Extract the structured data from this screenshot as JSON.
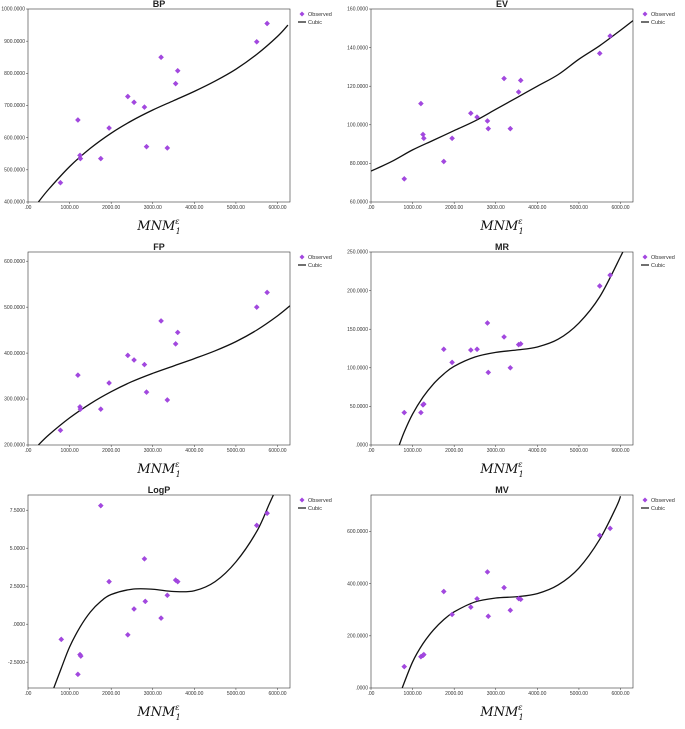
{
  "xlabel": {
    "base": "MNM",
    "sup": "ε",
    "sub": "1"
  },
  "legend": {
    "observed": "Observed",
    "fit": "Cubic"
  },
  "colors": {
    "observed": "#a347e0",
    "fit": "#111111"
  },
  "chart_data": [
    {
      "type": "scatter",
      "title": "BP",
      "xlim": [
        0,
        6300
      ],
      "ylim": [
        400,
        1000
      ],
      "xticks": [
        0,
        1000,
        2000,
        3000,
        4000,
        5000,
        6000
      ],
      "xtick_labels": [
        ".00",
        "1000.00",
        "2000.00",
        "3000.00",
        "4000.00",
        "5000.00",
        "6000.00"
      ],
      "yticks": [
        400,
        500,
        600,
        700,
        800,
        900,
        1000
      ],
      "ytick_labels": [
        "400.0000",
        "500.0000",
        "600.0000",
        "700.0000",
        "800.0000",
        "900.0000",
        "1000.0000"
      ],
      "observed": [
        [
          780,
          460
        ],
        [
          1200,
          655
        ],
        [
          1250,
          545
        ],
        [
          1260,
          535
        ],
        [
          1750,
          535
        ],
        [
          1950,
          630
        ],
        [
          2400,
          728
        ],
        [
          2550,
          710
        ],
        [
          2800,
          695
        ],
        [
          2850,
          572
        ],
        [
          3200,
          850
        ],
        [
          3350,
          568
        ],
        [
          3550,
          768
        ],
        [
          3600,
          808
        ],
        [
          5500,
          898
        ],
        [
          5750,
          955
        ]
      ],
      "fit_curve": [
        [
          250,
          400
        ],
        [
          500,
          440
        ],
        [
          1000,
          510
        ],
        [
          1500,
          567
        ],
        [
          2000,
          614
        ],
        [
          2500,
          653
        ],
        [
          3000,
          686
        ],
        [
          3500,
          715
        ],
        [
          4000,
          744
        ],
        [
          4500,
          776
        ],
        [
          5000,
          813
        ],
        [
          5500,
          859
        ],
        [
          6000,
          915
        ],
        [
          6250,
          950
        ]
      ]
    },
    {
      "type": "scatter",
      "title": "EV",
      "xlim": [
        0,
        6300
      ],
      "ylim": [
        60,
        160
      ],
      "xticks": [
        0,
        1000,
        2000,
        3000,
        4000,
        5000,
        6000
      ],
      "xtick_labels": [
        ".00",
        "1000.00",
        "2000.00",
        "3000.00",
        "4000.00",
        "5000.00",
        "6000.00"
      ],
      "yticks": [
        60,
        80,
        100,
        120,
        140,
        160
      ],
      "ytick_labels": [
        "60.0000",
        "80.0000",
        "100.0000",
        "120.0000",
        "140.0000",
        "160.0000"
      ],
      "observed": [
        [
          800,
          72
        ],
        [
          1200,
          111
        ],
        [
          1250,
          95
        ],
        [
          1270,
          93
        ],
        [
          1750,
          81
        ],
        [
          1950,
          93
        ],
        [
          2400,
          106
        ],
        [
          2550,
          104
        ],
        [
          2800,
          102
        ],
        [
          2820,
          98
        ],
        [
          3200,
          124
        ],
        [
          3350,
          98
        ],
        [
          3550,
          117
        ],
        [
          3600,
          123
        ],
        [
          5500,
          137
        ],
        [
          5750,
          146
        ]
      ],
      "fit_curve": [
        [
          0,
          76
        ],
        [
          500,
          81
        ],
        [
          1000,
          87
        ],
        [
          1500,
          92
        ],
        [
          2000,
          97
        ],
        [
          2500,
          102
        ],
        [
          3000,
          108
        ],
        [
          3500,
          114
        ],
        [
          4000,
          120
        ],
        [
          4500,
          126
        ],
        [
          5000,
          134
        ],
        [
          5500,
          141
        ],
        [
          6000,
          149
        ],
        [
          6300,
          154
        ]
      ]
    },
    {
      "type": "scatter",
      "title": "FP",
      "xlim": [
        0,
        6300
      ],
      "ylim": [
        200,
        620
      ],
      "xticks": [
        0,
        1000,
        2000,
        3000,
        4000,
        5000,
        6000
      ],
      "xtick_labels": [
        ".00",
        "1000.00",
        "2000.00",
        "3000.00",
        "4000.00",
        "5000.00",
        "6000.00"
      ],
      "yticks": [
        200,
        300,
        400,
        500,
        600
      ],
      "ytick_labels": [
        "200.0000",
        "300.0000",
        "400.0000",
        "500.0000",
        "600.0000"
      ],
      "observed": [
        [
          780,
          232
        ],
        [
          1200,
          352
        ],
        [
          1250,
          283
        ],
        [
          1260,
          278
        ],
        [
          1750,
          278
        ],
        [
          1950,
          335
        ],
        [
          2400,
          395
        ],
        [
          2550,
          385
        ],
        [
          2800,
          375
        ],
        [
          2850,
          315
        ],
        [
          3200,
          470
        ],
        [
          3350,
          298
        ],
        [
          3550,
          420
        ],
        [
          3600,
          445
        ],
        [
          5500,
          500
        ],
        [
          5750,
          532
        ]
      ],
      "fit_curve": [
        [
          250,
          200
        ],
        [
          500,
          222
        ],
        [
          1000,
          259
        ],
        [
          1500,
          290
        ],
        [
          2000,
          316
        ],
        [
          2500,
          338
        ],
        [
          3000,
          356
        ],
        [
          3500,
          372
        ],
        [
          4000,
          388
        ],
        [
          4500,
          405
        ],
        [
          5000,
          425
        ],
        [
          5500,
          450
        ],
        [
          6000,
          481
        ],
        [
          6300,
          503
        ]
      ]
    },
    {
      "type": "scatter",
      "title": "MR",
      "xlim": [
        0,
        6300
      ],
      "ylim": [
        0,
        250
      ],
      "xticks": [
        0,
        1000,
        2000,
        3000,
        4000,
        5000,
        6000
      ],
      "xtick_labels": [
        ".00",
        "1000.00",
        "2000.00",
        "3000.00",
        "4000.00",
        "5000.00",
        "6000.00"
      ],
      "yticks": [
        0,
        50,
        100,
        150,
        200,
        250
      ],
      "ytick_labels": [
        ".0000",
        "50.0000",
        "100.0000",
        "150.0000",
        "200.0000",
        "250.0000"
      ],
      "observed": [
        [
          800,
          42
        ],
        [
          1200,
          42
        ],
        [
          1250,
          52
        ],
        [
          1270,
          53
        ],
        [
          1750,
          124
        ],
        [
          1950,
          107
        ],
        [
          2400,
          123
        ],
        [
          2550,
          124
        ],
        [
          2800,
          158
        ],
        [
          2820,
          94
        ],
        [
          3200,
          140
        ],
        [
          3350,
          100
        ],
        [
          3550,
          130
        ],
        [
          3600,
          131
        ],
        [
          5500,
          206
        ],
        [
          5750,
          220
        ]
      ],
      "fit_curve": [
        [
          680,
          0
        ],
        [
          800,
          17
        ],
        [
          1000,
          40
        ],
        [
          1250,
          62
        ],
        [
          1500,
          79
        ],
        [
          1750,
          92
        ],
        [
          2000,
          102
        ],
        [
          2500,
          114
        ],
        [
          3000,
          120
        ],
        [
          3500,
          123
        ],
        [
          4000,
          127
        ],
        [
          4500,
          137
        ],
        [
          5000,
          158
        ],
        [
          5500,
          192
        ],
        [
          6000,
          244
        ],
        [
          6100,
          256
        ]
      ]
    },
    {
      "type": "scatter",
      "title": "LogP",
      "xlim": [
        0,
        6300
      ],
      "ylim": [
        -4.2,
        8.5
      ],
      "xticks": [
        0,
        1000,
        2000,
        3000,
        4000,
        5000,
        6000
      ],
      "xtick_labels": [
        ".00",
        "1000.00",
        "2000.00",
        "3000.00",
        "4000.00",
        "5000.00",
        "6000.00"
      ],
      "yticks": [
        -2.5,
        0,
        2.5,
        5,
        7.5
      ],
      "ytick_labels": [
        "-2.5000",
        ".0000",
        "2.5000",
        "5.0000",
        "7.5000"
      ],
      "observed": [
        [
          800,
          -1.0
        ],
        [
          1200,
          -3.3
        ],
        [
          1250,
          -2.0
        ],
        [
          1270,
          -2.1
        ],
        [
          1750,
          7.8
        ],
        [
          1950,
          2.8
        ],
        [
          2400,
          -0.7
        ],
        [
          2550,
          1.0
        ],
        [
          2800,
          4.3
        ],
        [
          2820,
          1.5
        ],
        [
          3200,
          0.4
        ],
        [
          3350,
          1.9
        ],
        [
          3550,
          2.9
        ],
        [
          3600,
          2.8
        ],
        [
          5500,
          6.5
        ],
        [
          5750,
          7.3
        ]
      ],
      "fit_curve": [
        [
          620,
          -4.2
        ],
        [
          800,
          -2.9
        ],
        [
          1000,
          -1.5
        ],
        [
          1250,
          -0.2
        ],
        [
          1500,
          0.8
        ],
        [
          1750,
          1.5
        ],
        [
          2000,
          1.95
        ],
        [
          2500,
          2.3
        ],
        [
          3000,
          2.3
        ],
        [
          3500,
          2.15
        ],
        [
          4000,
          2.2
        ],
        [
          4500,
          2.8
        ],
        [
          5000,
          4.1
        ],
        [
          5500,
          6.1
        ],
        [
          5800,
          7.9
        ],
        [
          5900,
          8.5
        ]
      ]
    },
    {
      "type": "scatter",
      "title": "MV",
      "xlim": [
        0,
        6300
      ],
      "ylim": [
        0,
        740
      ],
      "xticks": [
        0,
        1000,
        2000,
        3000,
        4000,
        5000,
        6000
      ],
      "xtick_labels": [
        ".00",
        "1000.00",
        "2000.00",
        "3000.00",
        "4000.00",
        "5000.00",
        "6000.00"
      ],
      "yticks": [
        0,
        200,
        400,
        600
      ],
      "ytick_labels": [
        ".0000",
        "200.0000",
        "400.0000",
        "600.0000"
      ],
      "observed": [
        [
          800,
          82
        ],
        [
          1200,
          120
        ],
        [
          1250,
          125
        ],
        [
          1270,
          128
        ],
        [
          1750,
          370
        ],
        [
          1950,
          282
        ],
        [
          2400,
          310
        ],
        [
          2550,
          342
        ],
        [
          2800,
          445
        ],
        [
          2820,
          275
        ],
        [
          3200,
          385
        ],
        [
          3350,
          298
        ],
        [
          3550,
          343
        ],
        [
          3600,
          340
        ],
        [
          5500,
          585
        ],
        [
          5750,
          612
        ]
      ],
      "fit_curve": [
        [
          750,
          0
        ],
        [
          1000,
          100
        ],
        [
          1250,
          170
        ],
        [
          1500,
          222
        ],
        [
          1750,
          262
        ],
        [
          2000,
          292
        ],
        [
          2500,
          330
        ],
        [
          3000,
          345
        ],
        [
          3500,
          350
        ],
        [
          4000,
          362
        ],
        [
          4500,
          395
        ],
        [
          5000,
          460
        ],
        [
          5500,
          570
        ],
        [
          5900,
          695
        ],
        [
          6000,
          735
        ]
      ]
    }
  ]
}
